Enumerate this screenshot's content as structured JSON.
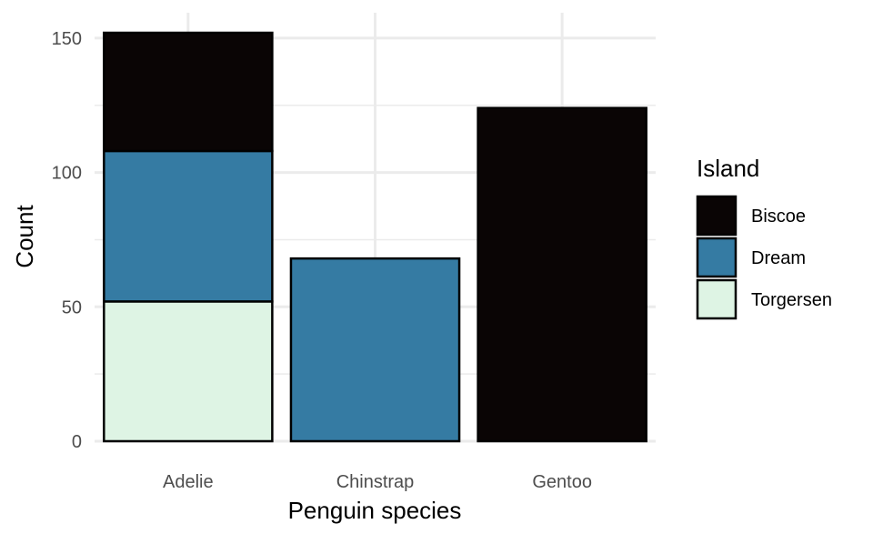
{
  "chart_data": {
    "type": "bar",
    "stacked": true,
    "title": "",
    "xlabel": "Penguin species",
    "ylabel": "Count",
    "categories": [
      "Adelie",
      "Chinstrap",
      "Gentoo"
    ],
    "series": [
      {
        "name": "Biscoe",
        "color": "#0a0505",
        "values": [
          44,
          0,
          124
        ]
      },
      {
        "name": "Dream",
        "color": "#357ba3",
        "values": [
          56,
          68,
          0
        ]
      },
      {
        "name": "Torgersen",
        "color": "#def4e4",
        "values": [
          52,
          0,
          0
        ]
      }
    ],
    "ylim": [
      0,
      152
    ],
    "yticks": [
      0,
      50,
      100,
      150
    ],
    "grid": true,
    "legend": {
      "title": "Island",
      "position": "right"
    }
  }
}
